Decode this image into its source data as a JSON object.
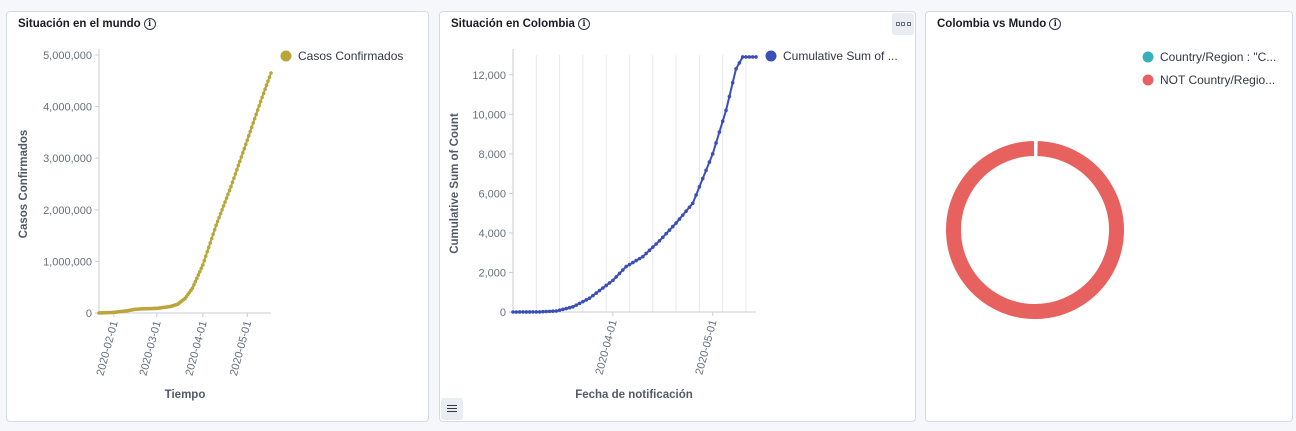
{
  "panels": [
    {
      "title": "Situación en el mundo"
    },
    {
      "title": "Situación en Colombia"
    },
    {
      "title": "Colombia vs Mundo"
    }
  ],
  "chart_data": [
    {
      "type": "line",
      "title": "Situación en el mundo",
      "xlabel": "Tiempo",
      "ylabel": "Casos Confirmados",
      "ylim": [
        0,
        5000000
      ],
      "yticks": [
        0,
        1000000,
        2000000,
        3000000,
        4000000,
        5000000
      ],
      "yticklabels": [
        "0",
        "1,000,000",
        "2,000,000",
        "3,000,000",
        "4,000,000",
        "5,000,000"
      ],
      "xticklabels": [
        "2020-02-01",
        "2020-03-01",
        "2020-04-01",
        "2020-05-01"
      ],
      "xlim": [
        "2020-01-22",
        "2020-05-17"
      ],
      "legend_position": "top-right",
      "grid": false,
      "series": [
        {
          "name": "Casos Confirmados",
          "color": "#b9a739",
          "x": [
            "2020-01-22",
            "2020-02-01",
            "2020-02-10",
            "2020-02-15",
            "2020-02-20",
            "2020-03-01",
            "2020-03-10",
            "2020-03-15",
            "2020-03-20",
            "2020-03-25",
            "2020-04-01",
            "2020-04-10",
            "2020-04-20",
            "2020-05-01",
            "2020-05-10",
            "2020-05-17"
          ],
          "values": [
            560,
            12000,
            43000,
            70000,
            80000,
            90000,
            125000,
            170000,
            280000,
            480000,
            930000,
            1700000,
            2450000,
            3350000,
            4100000,
            4650000
          ]
        }
      ]
    },
    {
      "type": "line",
      "title": "Situación en Colombia",
      "xlabel": "Fecha de notificación",
      "ylabel": "Cumulative Sum of Count",
      "ylim": [
        0,
        13000
      ],
      "yticks": [
        0,
        2000,
        4000,
        6000,
        8000,
        10000,
        12000
      ],
      "yticklabels": [
        "0",
        "2,000",
        "4,000",
        "6,000",
        "8,000",
        "10,000",
        "12,000"
      ],
      "xticklabels": [
        "2020-04-01",
        "2020-05-01"
      ],
      "xlim": [
        "2020-03-02",
        "2020-05-14"
      ],
      "legend_position": "top-right",
      "grid": true,
      "series": [
        {
          "name": "Cumulative Sum of ...",
          "color": "#3b4fb5",
          "x": [
            "2020-03-02",
            "2020-03-10",
            "2020-03-15",
            "2020-03-20",
            "2020-03-25",
            "2020-04-01",
            "2020-04-05",
            "2020-04-10",
            "2020-04-15",
            "2020-04-20",
            "2020-04-25",
            "2020-05-01",
            "2020-05-05",
            "2020-05-08",
            "2020-05-10",
            "2020-05-14"
          ],
          "values": [
            0,
            5,
            50,
            260,
            700,
            1600,
            2300,
            2800,
            3600,
            4500,
            5500,
            8000,
            10200,
            12300,
            12900,
            12900
          ]
        }
      ]
    },
    {
      "type": "pie",
      "title": "Colombia vs Mundo",
      "donut": true,
      "legend_position": "top-right",
      "slices": [
        {
          "label": "Country/Region : \"C...",
          "value": 0.3,
          "color": "#36b1b8"
        },
        {
          "label": "NOT Country/Regio...",
          "value": 99.7,
          "color": "#e7664c"
        }
      ]
    }
  ]
}
